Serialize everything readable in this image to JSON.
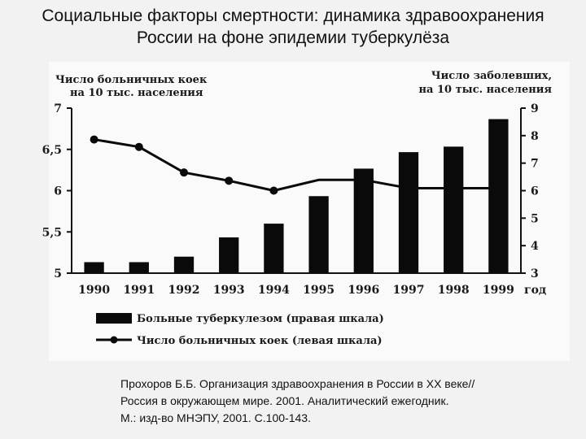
{
  "title": {
    "line1": "Социальные факторы смертности: динамика здравоохранения",
    "line2": "России на фоне эпидемии туберкулёза"
  },
  "citation": {
    "line1": "Прохоров Б.Б. Организация здравоохранения в России в XX веке//",
    "line2": "Россия в окружающем мире. 2001. Аналитический ежегодник.",
    "line3": "М.: изд-во МНЭПУ, 2001. С.100-143."
  },
  "chart_data": {
    "type": "bar",
    "categories": [
      "1990",
      "1991",
      "1992",
      "1993",
      "1994",
      "1995",
      "1996",
      "1997",
      "1998",
      "1999"
    ],
    "x_suffix": "год",
    "left_axis": {
      "title_line1": "Число больничных коек",
      "title_line2": "на 10 тыс. населения",
      "ylim": [
        5,
        7
      ],
      "ticks": [
        5,
        5.5,
        6,
        6.5,
        7
      ],
      "tick_labels": [
        "5",
        "5,5",
        "6",
        "6,5",
        "7"
      ]
    },
    "right_axis": {
      "title_line1": "Число заболевших,",
      "title_line2": "на 10 тыс. населения",
      "ylim": [
        3,
        9
      ],
      "ticks": [
        3,
        4,
        5,
        6,
        7,
        8,
        9
      ],
      "tick_labels": [
        "3",
        "4",
        "5",
        "6",
        "7",
        "8",
        "9"
      ]
    },
    "series": [
      {
        "name": "Больные туберкулезом (правая шкала)",
        "type": "bar",
        "axis": "right",
        "color": "#0a0a0a",
        "values": [
          3.4,
          3.4,
          3.6,
          4.3,
          4.8,
          5.8,
          6.8,
          7.4,
          7.6,
          8.6
        ]
      },
      {
        "name": "Число больничных коек (левая шкала)",
        "type": "line",
        "axis": "left",
        "color": "#0a0a0a",
        "values": [
          6.62,
          6.53,
          6.22,
          6.12,
          6.0,
          6.13,
          6.13,
          6.03,
          6.03,
          6.03
        ]
      }
    ],
    "legend_position": "bottom-left",
    "grid": false
  }
}
